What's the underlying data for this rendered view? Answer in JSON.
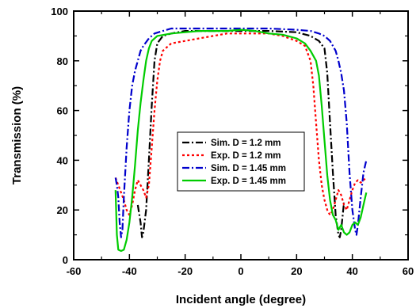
{
  "chart_data": {
    "type": "line",
    "xlabel": "Incident angle (degree)",
    "ylabel": "Transmission (%)",
    "xlim": [
      -60,
      60
    ],
    "ylim": [
      0,
      100
    ],
    "xticks": [
      -60,
      -40,
      -20,
      0,
      20,
      40,
      60
    ],
    "yticks": [
      0,
      20,
      40,
      60,
      80,
      100
    ],
    "x_tick_labels": [
      "-60",
      "-40",
      "-20",
      "0",
      "20",
      "40",
      "60"
    ],
    "y_tick_labels": [
      "0",
      "20",
      "40",
      "60",
      "80",
      "100"
    ],
    "grid": false,
    "legend_position": "center",
    "series": [
      {
        "name": "Sim. D = 1.2 mm",
        "color": "#000000",
        "dash": "dashdot",
        "points": [
          [
            -37,
            22
          ],
          [
            -36,
            15
          ],
          [
            -35.5,
            9
          ],
          [
            -35,
            11
          ],
          [
            -34,
            20
          ],
          [
            -33,
            40
          ],
          [
            -32,
            62
          ],
          [
            -31,
            80
          ],
          [
            -30,
            87
          ],
          [
            -28,
            90
          ],
          [
            -25,
            91
          ],
          [
            -20,
            92
          ],
          [
            -10,
            92
          ],
          [
            0,
            92
          ],
          [
            10,
            92
          ],
          [
            20,
            91.5
          ],
          [
            25,
            90
          ],
          [
            28,
            88
          ],
          [
            30,
            85
          ],
          [
            31,
            75
          ],
          [
            32,
            55
          ],
          [
            33,
            35
          ],
          [
            34,
            18
          ],
          [
            35,
            10
          ],
          [
            35.5,
            9
          ],
          [
            36,
            12
          ],
          [
            37,
            23
          ]
        ]
      },
      {
        "name": "Exp. D = 1.2 mm",
        "color": "#ff0000",
        "dash": "dot",
        "points": [
          [
            -45,
            33
          ],
          [
            -44,
            30
          ],
          [
            -43,
            27
          ],
          [
            -42,
            24
          ],
          [
            -41,
            20
          ],
          [
            -40,
            18
          ],
          [
            -39,
            22
          ],
          [
            -38,
            28
          ],
          [
            -37,
            32
          ],
          [
            -36,
            30
          ],
          [
            -35,
            28
          ],
          [
            -34,
            25
          ],
          [
            -33,
            30
          ],
          [
            -32,
            45
          ],
          [
            -31,
            60
          ],
          [
            -30,
            72
          ],
          [
            -29,
            80
          ],
          [
            -28,
            84
          ],
          [
            -25,
            87
          ],
          [
            -20,
            88
          ],
          [
            -15,
            89
          ],
          [
            -10,
            90
          ],
          [
            -5,
            91
          ],
          [
            0,
            91
          ],
          [
            5,
            91
          ],
          [
            10,
            91
          ],
          [
            15,
            90
          ],
          [
            20,
            88
          ],
          [
            23,
            86
          ],
          [
            25,
            80
          ],
          [
            26,
            70
          ],
          [
            27,
            55
          ],
          [
            28,
            40
          ],
          [
            29,
            30
          ],
          [
            30,
            24
          ],
          [
            31,
            20
          ],
          [
            32,
            18
          ],
          [
            33,
            20
          ],
          [
            34,
            24
          ],
          [
            35,
            28
          ],
          [
            36,
            26
          ],
          [
            37,
            22
          ],
          [
            38,
            20
          ],
          [
            39,
            24
          ],
          [
            40,
            28
          ],
          [
            41,
            31
          ],
          [
            42,
            32
          ],
          [
            43,
            31
          ],
          [
            44,
            32
          ],
          [
            45,
            33
          ]
        ]
      },
      {
        "name": "Sim. D = 1.45 mm",
        "color": "#0000cc",
        "dash": "dashdot",
        "points": [
          [
            -45,
            33
          ],
          [
            -44.5,
            30
          ],
          [
            -44,
            25
          ],
          [
            -43.5,
            15
          ],
          [
            -43,
            9
          ],
          [
            -42.5,
            12
          ],
          [
            -42,
            25
          ],
          [
            -41,
            45
          ],
          [
            -40,
            60
          ],
          [
            -39,
            70
          ],
          [
            -38,
            76
          ],
          [
            -37,
            80
          ],
          [
            -36,
            84
          ],
          [
            -35,
            86
          ],
          [
            -33,
            89
          ],
          [
            -31,
            91
          ],
          [
            -28,
            92
          ],
          [
            -25,
            93
          ],
          [
            -20,
            93
          ],
          [
            -10,
            93
          ],
          [
            0,
            93
          ],
          [
            10,
            93
          ],
          [
            20,
            92.5
          ],
          [
            25,
            92
          ],
          [
            28,
            91
          ],
          [
            30,
            90
          ],
          [
            32,
            88
          ],
          [
            34,
            84
          ],
          [
            35,
            80
          ],
          [
            36,
            75
          ],
          [
            37,
            68
          ],
          [
            38,
            55
          ],
          [
            39,
            35
          ],
          [
            40,
            20
          ],
          [
            41,
            12
          ],
          [
            41.5,
            10
          ],
          [
            42,
            14
          ],
          [
            43,
            25
          ],
          [
            44,
            35
          ],
          [
            45,
            40
          ]
        ]
      },
      {
        "name": "Exp. D = 1.45 mm",
        "color": "#00cc00",
        "dash": "solid",
        "points": [
          [
            -45,
            28
          ],
          [
            -44.5,
            10
          ],
          [
            -44,
            4
          ],
          [
            -43,
            3.5
          ],
          [
            -42,
            4
          ],
          [
            -41,
            8
          ],
          [
            -40,
            15
          ],
          [
            -39,
            25
          ],
          [
            -38,
            38
          ],
          [
            -37,
            52
          ],
          [
            -36,
            63
          ],
          [
            -35,
            72
          ],
          [
            -34,
            80
          ],
          [
            -33,
            85
          ],
          [
            -32,
            88
          ],
          [
            -30,
            90
          ],
          [
            -25,
            91
          ],
          [
            -20,
            91.5
          ],
          [
            -15,
            92
          ],
          [
            -10,
            92
          ],
          [
            -5,
            92
          ],
          [
            0,
            92.5
          ],
          [
            5,
            92
          ],
          [
            10,
            91
          ],
          [
            15,
            90.5
          ],
          [
            20,
            89
          ],
          [
            23,
            87
          ],
          [
            25,
            84
          ],
          [
            27,
            80
          ],
          [
            28,
            74
          ],
          [
            29,
            62
          ],
          [
            30,
            48
          ],
          [
            31,
            34
          ],
          [
            32,
            24
          ],
          [
            33,
            18
          ],
          [
            34,
            16
          ],
          [
            35,
            12
          ],
          [
            36,
            14
          ],
          [
            37,
            11
          ],
          [
            38,
            10
          ],
          [
            39,
            11
          ],
          [
            40,
            14
          ],
          [
            41,
            15
          ],
          [
            42,
            14
          ],
          [
            43,
            17
          ],
          [
            44,
            22
          ],
          [
            45,
            27
          ]
        ]
      }
    ]
  }
}
